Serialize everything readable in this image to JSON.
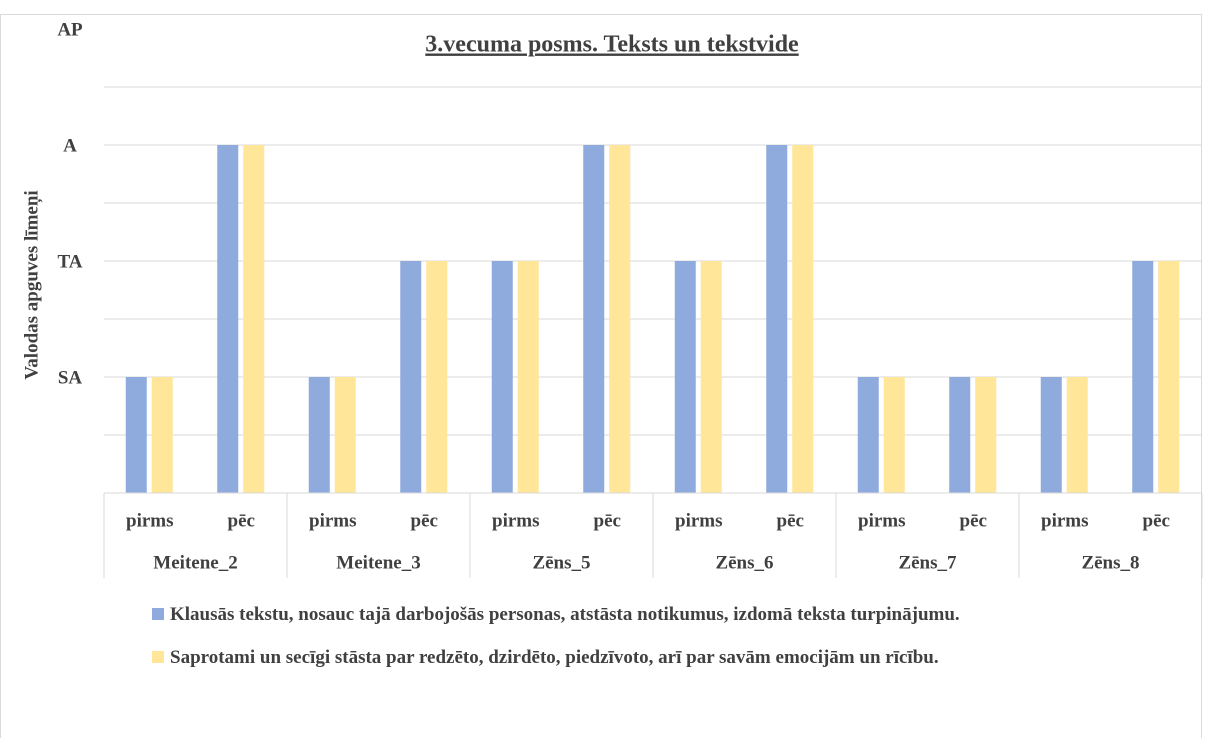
{
  "chart_data": {
    "type": "bar",
    "title": "3.vecuma posms. Teksts un tekstvide",
    "ylabel": "Valodas apguves līmeņi",
    "groups": [
      "Meitene_2",
      "Meitene_3",
      "Zēns_5",
      "Zēns_6",
      "Zēns_7",
      "Zēns_8"
    ],
    "categories": [
      "pirms",
      "pēc",
      "pirms",
      "pēc",
      "pirms",
      "pēc",
      "pirms",
      "pēc",
      "pirms",
      "pēc",
      "pirms",
      "pēc"
    ],
    "series": [
      {
        "name": "Klausās tekstu, nosauc tajā darbojošās personas, atstāsta notikumus, izdomā teksta turpinājumu.",
        "color": "#8faadc",
        "values": [
          1,
          3,
          1,
          2,
          2,
          3,
          2,
          3,
          1,
          1,
          1,
          2
        ]
      },
      {
        "name": "Saprotami un secīgi stāsta par redzēto, dzirdēto, piedzīvoto, arī par savām emocijām un rīcību.",
        "color": "#ffe699",
        "values": [
          1,
          3,
          1,
          2,
          2,
          3,
          2,
          3,
          1,
          1,
          1,
          2
        ]
      }
    ],
    "ylim": [
      0,
      4
    ],
    "yticks": [
      {
        "value": 1,
        "label": "SA"
      },
      {
        "value": 2,
        "label": "TA"
      },
      {
        "value": 3,
        "label": "A"
      },
      {
        "value": 4,
        "label": "AP"
      }
    ],
    "ygrid": [
      0.5,
      1,
      1.5,
      2,
      2.5,
      3,
      3.5
    ],
    "grid": true,
    "legend": "bottom"
  }
}
